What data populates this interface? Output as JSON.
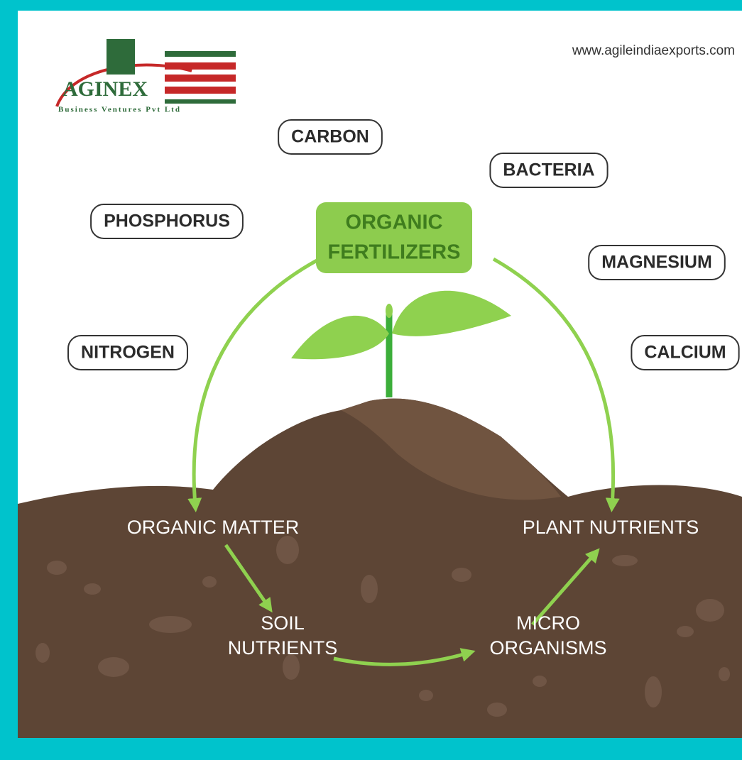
{
  "header": {
    "logo": {
      "name": "AGINEX",
      "tagline": "Business Ventures Pvt Ltd"
    },
    "url": "www.agileindiaexports.com"
  },
  "center": {
    "lines": [
      "ORGANIC",
      "FERTILIZERS"
    ]
  },
  "nutrients": [
    {
      "label": "CARBON"
    },
    {
      "label": "BACTERIA"
    },
    {
      "label": "PHOSPHORUS"
    },
    {
      "label": "MAGNESIUM"
    },
    {
      "label": "NITROGEN"
    },
    {
      "label": "CALCIUM"
    }
  ],
  "cycle": [
    {
      "lines": [
        "ORGANIC MATTER"
      ]
    },
    {
      "lines": [
        "SOIL",
        "NUTRIENTS"
      ]
    },
    {
      "lines": [
        "MICRO",
        "ORGANISMS"
      ]
    },
    {
      "lines": [
        "PLANT NUTRIENTS"
      ]
    }
  ]
}
